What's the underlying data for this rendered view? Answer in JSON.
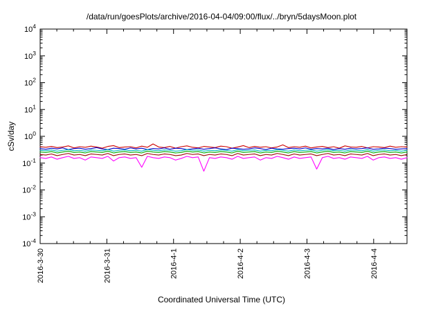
{
  "page": {
    "background": "#ffffff"
  },
  "chart_data": {
    "type": "line",
    "title": "/data/run/goesPlots/archive/2016-04-04/09:00/flux/../bryn/5daysMoon.plot",
    "xlabel": "Coordinated Universal Time (UTC)",
    "ylabel": "cSv/day",
    "grid": false,
    "legend": "none",
    "x_axis": {
      "tick_labels": [
        "2016-3-30",
        "2016-3-31",
        "2016-4-1",
        "2016-4-2",
        "2016-4-3",
        "2016-4-4"
      ],
      "span_days": 5.5,
      "minor_ticks_per_day": 4
    },
    "y_axis": {
      "scale": "log",
      "min_exponent": -4,
      "max_exponent": 4,
      "tick_exponents": [
        4,
        3,
        2,
        1,
        0,
        -1,
        -2,
        -3,
        -4
      ]
    },
    "series": [
      {
        "name": "red-channel",
        "color": "#cc0000",
        "values": [
          0.41,
          0.39,
          0.42,
          0.38,
          0.4,
          0.44,
          0.37,
          0.41,
          0.39,
          0.43,
          0.4,
          0.36,
          0.42,
          0.45,
          0.38,
          0.4,
          0.41,
          0.37,
          0.43,
          0.39,
          0.52,
          0.4,
          0.38,
          0.42,
          0.36,
          0.41,
          0.44,
          0.39,
          0.37,
          0.42,
          0.4,
          0.38,
          0.43,
          0.41,
          0.36,
          0.4,
          0.45,
          0.38,
          0.42,
          0.39,
          0.41,
          0.37,
          0.4,
          0.48,
          0.38,
          0.41,
          0.39,
          0.43,
          0.37,
          0.4,
          0.42,
          0.38,
          0.41,
          0.36,
          0.44,
          0.4,
          0.39,
          0.42,
          0.37,
          0.41,
          0.4,
          0.38,
          0.43,
          0.39,
          0.41,
          0.4
        ]
      },
      {
        "name": "blue-channel",
        "color": "#0000cc",
        "values": [
          0.35,
          0.33,
          0.36,
          0.34,
          0.37,
          0.32,
          0.35,
          0.36,
          0.33,
          0.35,
          0.38,
          0.34,
          0.32,
          0.36,
          0.35,
          0.33,
          0.37,
          0.34,
          0.36,
          0.32,
          0.35,
          0.34,
          0.37,
          0.33,
          0.36,
          0.35,
          0.32,
          0.34,
          0.36,
          0.33,
          0.35,
          0.37,
          0.34,
          0.32,
          0.36,
          0.35,
          0.33,
          0.34,
          0.37,
          0.35,
          0.32,
          0.36,
          0.34,
          0.33,
          0.35,
          0.36,
          0.34,
          0.37,
          0.33,
          0.35,
          0.34,
          0.36,
          0.32,
          0.35,
          0.33,
          0.36,
          0.34,
          0.35,
          0.37,
          0.33,
          0.34,
          0.36,
          0.35,
          0.33,
          0.34,
          0.35
        ]
      },
      {
        "name": "cyan-channel",
        "color": "#00bbbb",
        "values": [
          0.3,
          0.29,
          0.31,
          0.28,
          0.3,
          0.32,
          0.29,
          0.3,
          0.28,
          0.31,
          0.3,
          0.29,
          0.32,
          0.28,
          0.3,
          0.31,
          0.29,
          0.3,
          0.28,
          0.32,
          0.3,
          0.29,
          0.31,
          0.3,
          0.28,
          0.29,
          0.32,
          0.3,
          0.31,
          0.28,
          0.3,
          0.29,
          0.31,
          0.3,
          0.28,
          0.32,
          0.29,
          0.3,
          0.31,
          0.28,
          0.3,
          0.29,
          0.32,
          0.3,
          0.28,
          0.31,
          0.29,
          0.3,
          0.31,
          0.28,
          0.3,
          0.32,
          0.29,
          0.3,
          0.28,
          0.31,
          0.3,
          0.29,
          0.32,
          0.28,
          0.3,
          0.31,
          0.29,
          0.3,
          0.28,
          0.3
        ]
      },
      {
        "name": "green-channel",
        "color": "#00aa00",
        "values": [
          0.26,
          0.25,
          0.27,
          0.24,
          0.26,
          0.28,
          0.25,
          0.26,
          0.24,
          0.27,
          0.26,
          0.25,
          0.28,
          0.24,
          0.26,
          0.27,
          0.25,
          0.26,
          0.24,
          0.28,
          0.26,
          0.25,
          0.27,
          0.26,
          0.24,
          0.25,
          0.28,
          0.26,
          0.27,
          0.24,
          0.26,
          0.25,
          0.27,
          0.26,
          0.24,
          0.28,
          0.25,
          0.26,
          0.27,
          0.24,
          0.26,
          0.25,
          0.28,
          0.26,
          0.24,
          0.27,
          0.25,
          0.26,
          0.27,
          0.24,
          0.26,
          0.28,
          0.25,
          0.26,
          0.24,
          0.27,
          0.26,
          0.25,
          0.28,
          0.24,
          0.26,
          0.27,
          0.25,
          0.26,
          0.24,
          0.26
        ]
      },
      {
        "name": "dark-red-channel",
        "color": "#990000",
        "values": [
          0.21,
          0.2,
          0.22,
          0.19,
          0.21,
          0.23,
          0.2,
          0.21,
          0.19,
          0.22,
          0.21,
          0.2,
          0.23,
          0.19,
          0.21,
          0.22,
          0.2,
          0.21,
          0.19,
          0.23,
          0.21,
          0.2,
          0.22,
          0.21,
          0.19,
          0.2,
          0.23,
          0.21,
          0.22,
          0.19,
          0.21,
          0.2,
          0.22,
          0.21,
          0.19,
          0.23,
          0.2,
          0.21,
          0.22,
          0.19,
          0.21,
          0.2,
          0.23,
          0.21,
          0.19,
          0.22,
          0.2,
          0.21,
          0.22,
          0.19,
          0.21,
          0.23,
          0.2,
          0.21,
          0.19,
          0.22,
          0.21,
          0.2,
          0.23,
          0.19,
          0.21,
          0.22,
          0.2,
          0.21,
          0.19,
          0.21
        ]
      },
      {
        "name": "magenta-channel",
        "color": "#ff00ff",
        "values": [
          0.16,
          0.15,
          0.17,
          0.14,
          0.16,
          0.18,
          0.15,
          0.16,
          0.13,
          0.17,
          0.16,
          0.15,
          0.18,
          0.12,
          0.16,
          0.17,
          0.15,
          0.16,
          0.07,
          0.18,
          0.16,
          0.15,
          0.17,
          0.16,
          0.13,
          0.15,
          0.18,
          0.16,
          0.17,
          0.05,
          0.16,
          0.15,
          0.17,
          0.16,
          0.14,
          0.18,
          0.15,
          0.16,
          0.17,
          0.13,
          0.16,
          0.15,
          0.18,
          0.16,
          0.14,
          0.17,
          0.15,
          0.16,
          0.17,
          0.06,
          0.16,
          0.18,
          0.15,
          0.16,
          0.14,
          0.17,
          0.16,
          0.15,
          0.18,
          0.13,
          0.16,
          0.17,
          0.15,
          0.16,
          0.14,
          0.16
        ]
      }
    ]
  }
}
